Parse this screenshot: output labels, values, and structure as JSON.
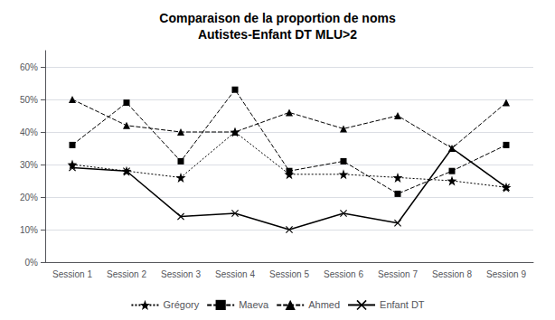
{
  "chart_data": {
    "type": "line",
    "title": "Comparaison de la proportion de noms\nAutistes-Enfant DT MLU>2",
    "categories": [
      "Session 1",
      "Session 2",
      "Session 3",
      "Session 4",
      "Session 5",
      "Session 6",
      "Session 7",
      "Session 8",
      "Session 9"
    ],
    "series": [
      {
        "name": "Grégory",
        "color": "#000000",
        "marker": "star",
        "line_style": "dotted",
        "values": [
          0.3,
          0.28,
          0.26,
          0.4,
          0.27,
          0.27,
          0.26,
          0.25,
          0.23
        ]
      },
      {
        "name": "Maeva",
        "color": "#000000",
        "marker": "square",
        "line_style": "dashed",
        "values": [
          0.36,
          0.49,
          0.31,
          0.53,
          0.28,
          0.31,
          0.21,
          0.28,
          0.36
        ]
      },
      {
        "name": "Ahmed",
        "color": "#000000",
        "marker": "triangle",
        "line_style": "dashed",
        "values": [
          0.5,
          0.42,
          0.4,
          0.4,
          0.46,
          0.41,
          0.45,
          0.35,
          0.49
        ]
      },
      {
        "name": "Enfant DT",
        "color": "#000000",
        "marker": "x",
        "line_style": "solid",
        "values": [
          0.29,
          0.28,
          0.14,
          0.15,
          0.1,
          0.15,
          0.12,
          0.35,
          0.23
        ]
      }
    ],
    "ylim": [
      0.0,
      0.65
    ],
    "yticks": [
      {
        "value": 0.0,
        "label": "0%"
      },
      {
        "value": 0.1,
        "label": "10%"
      },
      {
        "value": 0.2,
        "label": "20%"
      },
      {
        "value": 0.3,
        "label": "30%"
      },
      {
        "value": 0.4,
        "label": "40%"
      },
      {
        "value": 0.5,
        "label": "50%"
      },
      {
        "value": 0.6,
        "label": "60%"
      }
    ],
    "grid": true,
    "legend": "bottom"
  }
}
